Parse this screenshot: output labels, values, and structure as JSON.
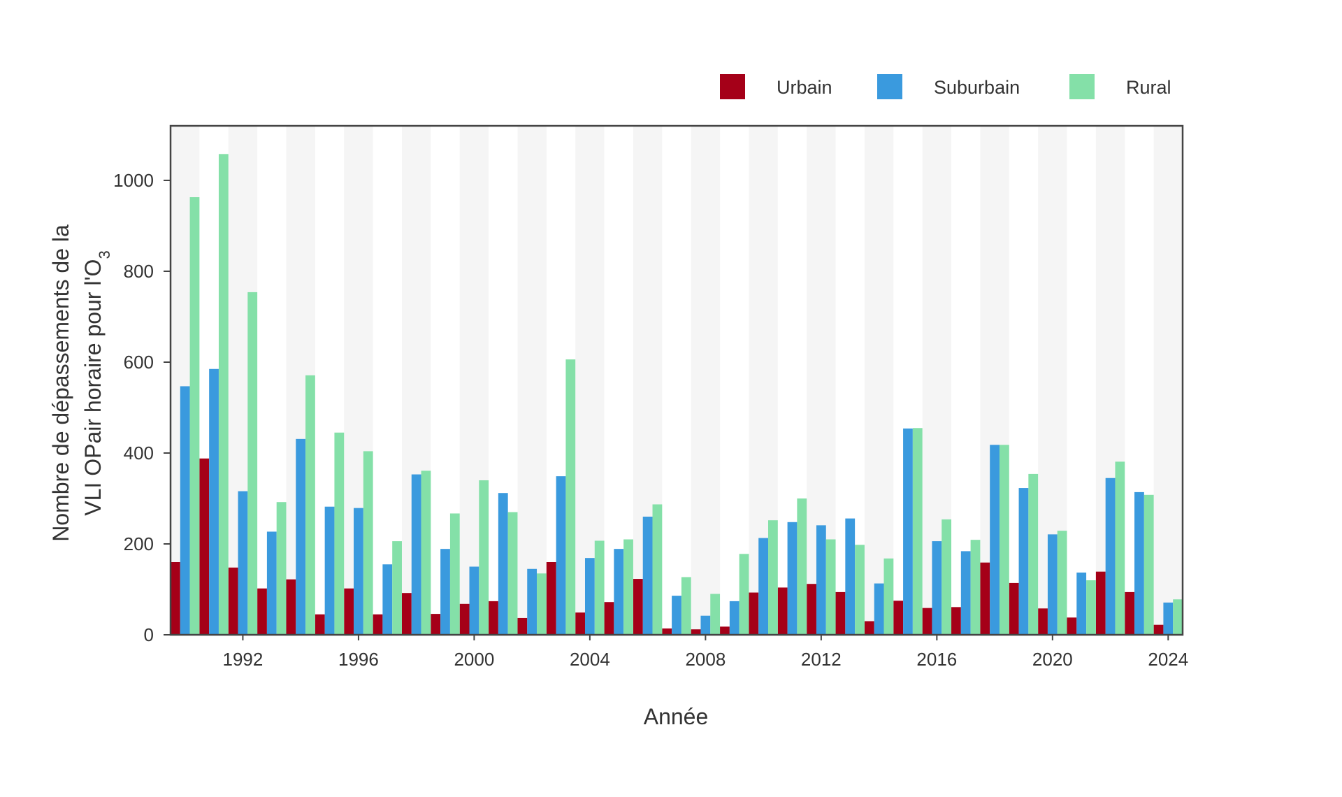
{
  "chart_data": {
    "type": "bar",
    "xlabel": "Année",
    "ylabel": {
      "line1": "Nombre de dépassements de la",
      "line2_main": "VLI OPair horaire pour l'O",
      "line2_sub": "3"
    },
    "x": [
      1990,
      1991,
      1992,
      1993,
      1994,
      1995,
      1996,
      1997,
      1998,
      1999,
      2000,
      2001,
      2002,
      2003,
      2004,
      2005,
      2006,
      2007,
      2008,
      2009,
      2010,
      2011,
      2012,
      2013,
      2014,
      2015,
      2016,
      2017,
      2018,
      2019,
      2020,
      2021,
      2022,
      2023,
      2024
    ],
    "xticks": [
      "1992",
      "1996",
      "2000",
      "2004",
      "2008",
      "2012",
      "2016",
      "2020",
      "2024"
    ],
    "xtick_values": [
      1992,
      1996,
      2000,
      2004,
      2008,
      2012,
      2016,
      2020,
      2024
    ],
    "ylim": [
      0,
      1120
    ],
    "yticks": [
      "0",
      "200",
      "400",
      "600",
      "800",
      "1000"
    ],
    "ytick_values": [
      0,
      200,
      400,
      600,
      800,
      1000
    ],
    "legend_position": "top-right",
    "alternating_year_bands": true,
    "series": [
      {
        "name": "Urbain",
        "color": "#a50018",
        "values": [
          160,
          388,
          148,
          102,
          122,
          45,
          102,
          45,
          92,
          46,
          68,
          74,
          37,
          160,
          49,
          72,
          123,
          14,
          12,
          18,
          93,
          104,
          112,
          94,
          30,
          75,
          59,
          61,
          159,
          114,
          58,
          38,
          139,
          94,
          22
        ]
      },
      {
        "name": "Suburbain",
        "color": "#3a9ade",
        "values": [
          547,
          585,
          316,
          227,
          431,
          282,
          279,
          155,
          353,
          189,
          150,
          312,
          145,
          349,
          169,
          189,
          260,
          86,
          42,
          74,
          213,
          248,
          241,
          256,
          113,
          454,
          206,
          184,
          418,
          323,
          221,
          137,
          345,
          314,
          71
        ]
      },
      {
        "name": "Rural",
        "color": "#84e0a8",
        "values": [
          963,
          1058,
          754,
          292,
          571,
          445,
          404,
          206,
          361,
          267,
          340,
          270,
          135,
          606,
          207,
          210,
          287,
          127,
          90,
          178,
          252,
          300,
          210,
          198,
          168,
          455,
          254,
          209,
          418,
          354,
          229,
          120,
          381,
          308,
          78
        ]
      }
    ]
  }
}
